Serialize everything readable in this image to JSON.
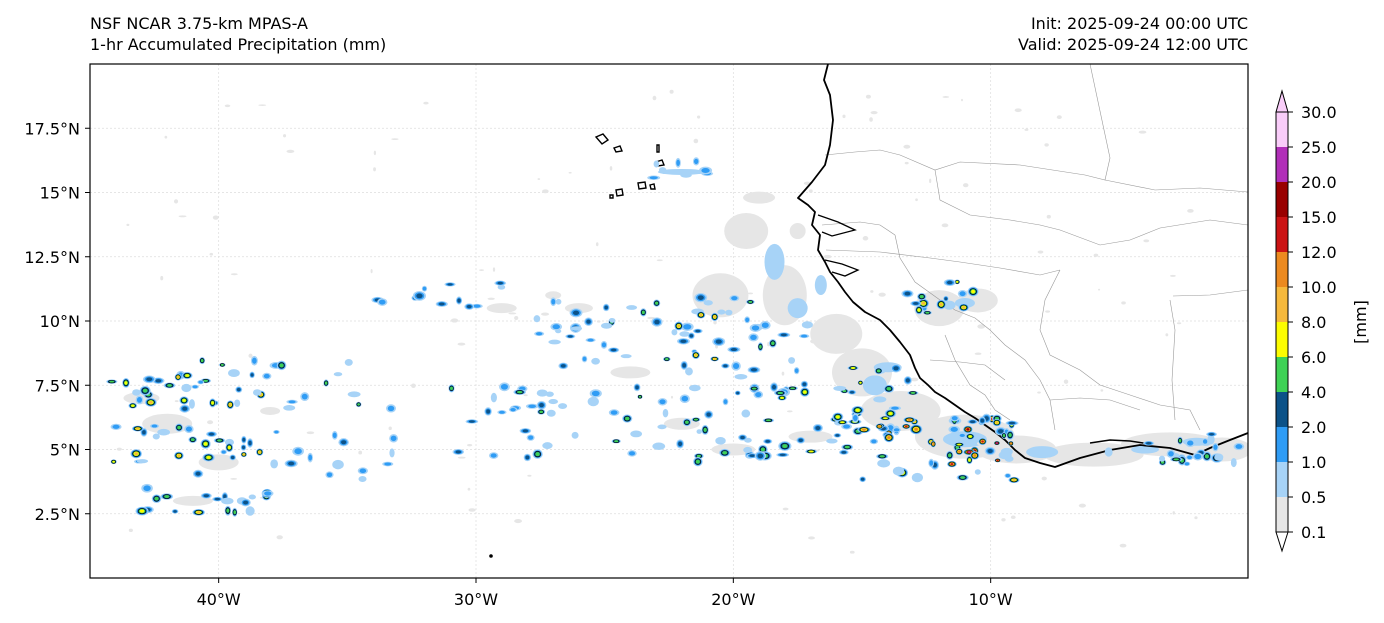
{
  "header": {
    "model_name": "NSF NCAR 3.75-km MPAS-A",
    "field_name": "1-hr Accumulated Precipitation (mm)",
    "init_label": "Init: 2025-09-24 00:00 UTC",
    "valid_label": "Valid: 2025-09-24 12:00 UTC"
  },
  "chart_data": {
    "type": "heatmap",
    "projection": "PlateCarree",
    "lon_range": [
      -45,
      0
    ],
    "lat_range": [
      0,
      20
    ],
    "xticks": [
      {
        "value": -40,
        "label": "40°W"
      },
      {
        "value": -30,
        "label": "30°W"
      },
      {
        "value": -20,
        "label": "20°W"
      },
      {
        "value": -10,
        "label": "10°W"
      }
    ],
    "yticks": [
      {
        "value": 2.5,
        "label": "2.5°N"
      },
      {
        "value": 5,
        "label": "5°N"
      },
      {
        "value": 7.5,
        "label": "7.5°N"
      },
      {
        "value": 10,
        "label": "10°N"
      },
      {
        "value": 12.5,
        "label": "12.5°N"
      },
      {
        "value": 15,
        "label": "15°N"
      },
      {
        "value": 17.5,
        "label": "17.5°N"
      }
    ],
    "colorbar": {
      "label": "[mm]",
      "extend": "both",
      "levels": [
        "0.1",
        "0.5",
        "1.0",
        "2.0",
        "4.0",
        "6.0",
        "8.0",
        "10.0",
        "12.0",
        "15.0",
        "20.0",
        "25.0",
        "30.0"
      ],
      "colors": [
        "#e6e6e6",
        "#a7d3f7",
        "#2f9cf5",
        "#0c5288",
        "#3fd255",
        "#fdfd00",
        "#f6b93c",
        "#ec8a20",
        "#cb1314",
        "#990000",
        "#b12fb8",
        "#f9cdf9"
      ],
      "under_color": "#ffffff",
      "over_color": "#f9cdf9"
    }
  }
}
